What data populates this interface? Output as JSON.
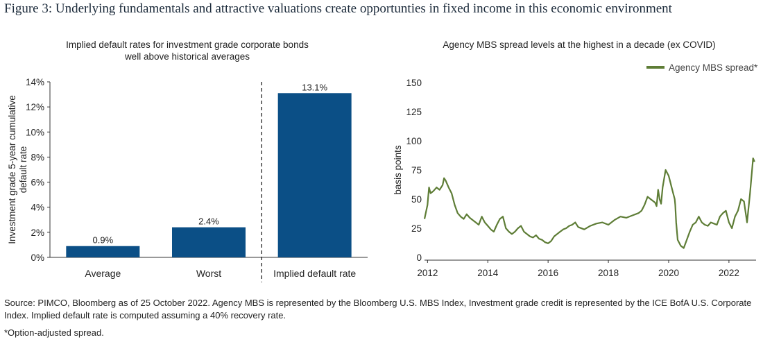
{
  "figure": {
    "label": "Figure 3:",
    "title": "Underlying fundamentals and attractive valuations create opportunties in fixed income in this economic environment"
  },
  "chart_data": [
    {
      "type": "bar",
      "title_lines": [
        "Implied default rates for investment grade corporate bonds",
        "well above historical averages"
      ],
      "ylabel_lines": [
        "Investment grade 5-year cumulative",
        "default rate"
      ],
      "categories": [
        "Average",
        "Worst",
        "Implied default rate"
      ],
      "values": [
        0.9,
        2.4,
        13.1
      ],
      "value_labels": [
        "0.9%",
        "2.4%",
        "13.1%"
      ],
      "ylim": [
        0,
        14
      ],
      "yticks": [
        0,
        2,
        4,
        6,
        8,
        10,
        12,
        14
      ],
      "ytick_labels": [
        "0%",
        "2%",
        "4%",
        "6%",
        "8%",
        "10%",
        "12%",
        "14%"
      ],
      "bar_color": "#0b4f86",
      "divider_between": [
        1,
        2
      ],
      "grid": false
    },
    {
      "type": "line",
      "title": "Agency MBS spread levels at the highest in a decade (ex COVID)",
      "ylabel": "basis points",
      "series": [
        {
          "name": "Agency MBS spread*",
          "color": "#5e7d36",
          "x": [
            2011.9,
            2012.0,
            2012.05,
            2012.1,
            2012.2,
            2012.3,
            2012.4,
            2012.5,
            2012.55,
            2012.6,
            2012.7,
            2012.8,
            2012.9,
            2013.0,
            2013.1,
            2013.2,
            2013.3,
            2013.4,
            2013.5,
            2013.6,
            2013.7,
            2013.8,
            2013.9,
            2014.0,
            2014.1,
            2014.2,
            2014.3,
            2014.4,
            2014.5,
            2014.6,
            2014.7,
            2014.8,
            2014.9,
            2015.0,
            2015.1,
            2015.2,
            2015.3,
            2015.4,
            2015.5,
            2015.6,
            2015.7,
            2015.8,
            2015.9,
            2016.0,
            2016.1,
            2016.2,
            2016.3,
            2016.4,
            2016.5,
            2016.6,
            2016.7,
            2016.8,
            2016.9,
            2017.0,
            2017.2,
            2017.4,
            2017.6,
            2017.8,
            2018.0,
            2018.2,
            2018.4,
            2018.6,
            2018.8,
            2019.0,
            2019.1,
            2019.2,
            2019.3,
            2019.4,
            2019.5,
            2019.55,
            2019.6,
            2019.65,
            2019.7,
            2019.75,
            2019.8,
            2019.9,
            2020.0,
            2020.05,
            2020.1,
            2020.15,
            2020.2,
            2020.22,
            2020.25,
            2020.3,
            2020.4,
            2020.5,
            2020.6,
            2020.7,
            2020.8,
            2020.9,
            2021.0,
            2021.1,
            2021.2,
            2021.3,
            2021.4,
            2021.5,
            2021.6,
            2021.7,
            2021.8,
            2021.9,
            2022.0,
            2022.1,
            2022.2,
            2022.3,
            2022.4,
            2022.5,
            2022.6,
            2022.7,
            2022.8,
            2022.85
          ],
          "y": [
            33,
            45,
            60,
            55,
            57,
            60,
            58,
            62,
            68,
            66,
            60,
            55,
            45,
            38,
            35,
            33,
            37,
            34,
            32,
            30,
            28,
            35,
            30,
            27,
            24,
            22,
            28,
            33,
            35,
            25,
            22,
            20,
            22,
            25,
            27,
            22,
            20,
            18,
            17,
            19,
            16,
            15,
            13,
            12,
            14,
            18,
            20,
            22,
            24,
            25,
            27,
            28,
            30,
            26,
            24,
            27,
            29,
            30,
            28,
            32,
            35,
            34,
            36,
            38,
            40,
            45,
            52,
            50,
            48,
            47,
            44,
            58,
            50,
            46,
            60,
            75,
            70,
            65,
            60,
            55,
            50,
            45,
            30,
            15,
            10,
            8,
            15,
            22,
            28,
            30,
            35,
            30,
            28,
            27,
            30,
            29,
            28,
            35,
            38,
            40,
            30,
            25,
            35,
            40,
            50,
            48,
            30,
            55,
            85,
            82
          ]
        }
      ],
      "xticks": [
        2012,
        2014,
        2016,
        2018,
        2020,
        2022
      ],
      "xtick_labels": [
        "2012",
        "2014",
        "2016",
        "2018",
        "2020",
        "2022"
      ],
      "xlim": [
        2011.9,
        2022.9
      ],
      "yticks": [
        0,
        25,
        50,
        75,
        100,
        125,
        150
      ],
      "ytick_labels": [
        "0",
        "25",
        "50",
        "75",
        "100",
        "125",
        "150"
      ],
      "ylim": [
        0,
        150
      ],
      "legend": "top-right",
      "grid": false
    }
  ],
  "footer": {
    "source_line1": "Source: PIMCO, Bloomberg as of 25 October 2022. Agency MBS is represented by the Bloomberg U.S. MBS Index, Investment grade credit is represented by the ICE BofA U.S. Corporate",
    "source_line2": "Index. Implied default rate is computed assuming a 40% recovery rate.",
    "note": "*Option-adjusted spread."
  }
}
